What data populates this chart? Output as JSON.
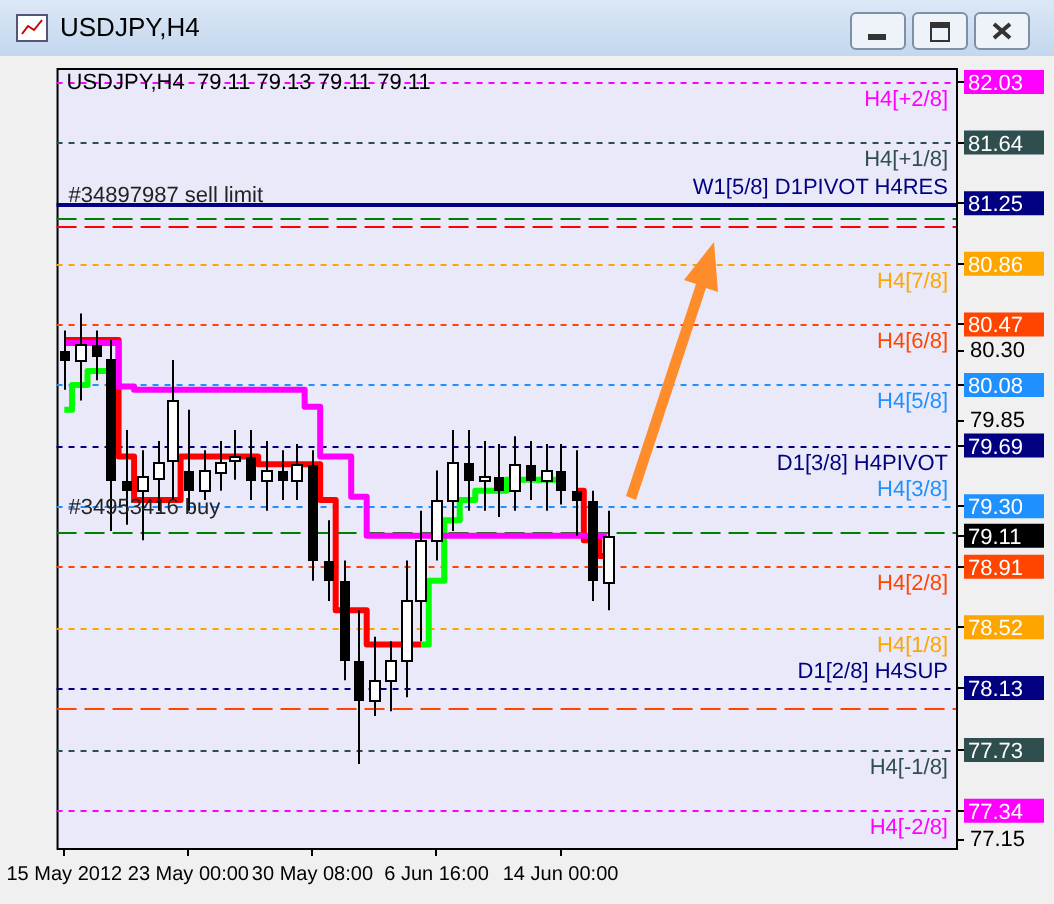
{
  "chart_data": {
    "type": "candlestick",
    "title": "USDJPY,H4",
    "subtitle": "79.11 79.13 79.11 79.11",
    "categories": [
      "15 May 2012",
      null,
      null,
      null,
      null,
      null,
      null,
      null,
      "23 May 00:00",
      null,
      null,
      null,
      null,
      null,
      null,
      null,
      "30 May 08:00",
      null,
      null,
      null,
      null,
      null,
      null,
      null,
      "6 Jun 16:00",
      null,
      null,
      null,
      null,
      null,
      null,
      null,
      "14 Jun 00:00",
      null,
      null,
      null,
      null,
      null,
      null,
      null,
      null,
      null,
      null,
      null,
      null,
      null,
      null,
      null,
      null,
      null,
      null,
      null,
      null,
      null,
      null,
      null,
      null,
      null
    ],
    "ohlc": [
      [
        80.3,
        80.43,
        80.05,
        80.24
      ],
      [
        80.24,
        80.54,
        79.98,
        80.34
      ],
      [
        80.34,
        80.43,
        80.11,
        80.26
      ],
      [
        80.26,
        80.37,
        79.14,
        79.47
      ],
      [
        79.47,
        79.79,
        79.18,
        79.4
      ],
      [
        79.4,
        79.66,
        79.08,
        79.49
      ],
      [
        79.49,
        79.72,
        79.27,
        79.59
      ],
      [
        79.59,
        80.24,
        79.34,
        79.98
      ],
      [
        79.53,
        79.92,
        79.27,
        79.4
      ],
      [
        79.4,
        79.66,
        79.34,
        79.53
      ],
      [
        79.53,
        79.72,
        79.4,
        79.59
      ],
      [
        79.59,
        79.79,
        79.47,
        79.62
      ],
      [
        79.62,
        79.79,
        79.34,
        79.47
      ],
      [
        79.47,
        79.72,
        79.27,
        79.53
      ],
      [
        79.53,
        79.66,
        79.34,
        79.47
      ],
      [
        79.47,
        79.7,
        79.34,
        79.57
      ],
      [
        79.57,
        79.66,
        78.82,
        78.95
      ],
      [
        78.95,
        79.21,
        78.69,
        78.82
      ],
      [
        78.82,
        78.95,
        78.18,
        78.31
      ],
      [
        78.31,
        78.63,
        77.64,
        78.05
      ],
      [
        78.05,
        78.46,
        77.95,
        78.18
      ],
      [
        78.18,
        78.43,
        77.98,
        78.31
      ],
      [
        78.31,
        78.95,
        78.07,
        78.69
      ],
      [
        78.69,
        79.27,
        78.43,
        79.08
      ],
      [
        79.08,
        79.53,
        78.95,
        79.34
      ],
      [
        79.34,
        79.79,
        79.14,
        79.59
      ],
      [
        79.59,
        79.79,
        79.27,
        79.47
      ],
      [
        79.47,
        79.72,
        79.27,
        79.49
      ],
      [
        79.49,
        79.7,
        79.23,
        79.4
      ],
      [
        79.4,
        79.75,
        79.27,
        79.57
      ],
      [
        79.57,
        79.72,
        79.34,
        79.47
      ],
      [
        79.47,
        79.7,
        79.27,
        79.53
      ],
      [
        79.53,
        79.7,
        79.31,
        79.4
      ],
      [
        79.4,
        79.66,
        79.11,
        79.34
      ],
      [
        79.34,
        79.4,
        78.69,
        78.82
      ],
      [
        78.82,
        79.27,
        78.63,
        79.11
      ],
      null,
      null,
      null,
      null,
      null,
      null,
      null,
      null,
      null,
      null,
      null,
      null,
      null,
      null,
      null,
      null,
      null,
      null,
      null,
      null,
      null,
      null
    ],
    "series": [
      {
        "type": "step",
        "color": "#ff00ff",
        "values": [
          80.35,
          80.35,
          80.35,
          80.35,
          80.07,
          80.05,
          80.05,
          80.05,
          80.05,
          80.05,
          80.05,
          80.05,
          80.05,
          80.05,
          80.05,
          80.05,
          79.94,
          79.62,
          79.62,
          79.36,
          79.11,
          79.11,
          79.11,
          79.11,
          79.11,
          79.11,
          79.11,
          79.11,
          79.11,
          79.11,
          79.11,
          79.11,
          79.11,
          79.11,
          79.11,
          79.11,
          null,
          null,
          null,
          null,
          null,
          null,
          null,
          null,
          null,
          null,
          null,
          null,
          null,
          null,
          null,
          null,
          null,
          null,
          null,
          null,
          null,
          null
        ]
      },
      {
        "type": "step",
        "color": "#ff0000",
        "values": [
          80.37,
          80.37,
          80.37,
          80.37,
          79.62,
          79.34,
          79.34,
          79.34,
          79.62,
          79.62,
          79.62,
          79.62,
          79.62,
          79.57,
          79.57,
          79.57,
          79.57,
          79.34,
          78.63,
          78.63,
          78.41,
          78.41,
          78.41,
          78.41,
          null,
          null,
          null,
          null,
          null,
          null,
          null,
          null,
          null,
          79.4,
          79.08,
          78.98,
          null,
          null,
          null,
          null,
          null,
          null,
          null,
          null,
          null,
          null,
          null,
          null,
          null,
          null,
          null,
          null,
          null,
          null,
          null,
          null,
          null,
          null
        ]
      },
      {
        "type": "step",
        "color": "#00ff00",
        "values": [
          79.92,
          80.08,
          80.17,
          80.17,
          null,
          null,
          null,
          null,
          null,
          null,
          null,
          null,
          null,
          null,
          null,
          null,
          null,
          null,
          null,
          null,
          null,
          null,
          null,
          78.41,
          78.82,
          79.21,
          79.34,
          79.4,
          79.4,
          79.47,
          79.47,
          79.47,
          79.47,
          null,
          null,
          null,
          null,
          null,
          null,
          null,
          null,
          null,
          null,
          null,
          null,
          null,
          null,
          null,
          null,
          null,
          null,
          null,
          null,
          null,
          null,
          null,
          null,
          null
        ]
      }
    ],
    "ylim": [
      77.1,
      82.12
    ],
    "yticks": [
      {
        "value": 82.03,
        "label": "82.03"
      },
      {
        "value": 81.64,
        "label": "81.64"
      },
      {
        "value": 81.25,
        "label": "81.25"
      },
      {
        "value": 80.86,
        "label": "80.86"
      },
      {
        "value": 80.47,
        "label": "80.47"
      },
      {
        "value": 80.3,
        "label": "80.30"
      },
      {
        "value": 80.08,
        "label": "80.08"
      },
      {
        "value": 79.85,
        "label": "79.85"
      },
      {
        "value": 79.69,
        "label": "79.69"
      },
      {
        "value": 79.3,
        "label": "79.30"
      },
      {
        "value": 79.11,
        "label": "79.11"
      },
      {
        "value": 78.91,
        "label": "78.91"
      },
      {
        "value": 78.52,
        "label": "78.52"
      },
      {
        "value": 78.13,
        "label": "78.13"
      },
      {
        "value": 77.73,
        "label": "77.73"
      },
      {
        "value": 77.34,
        "label": "77.34"
      },
      {
        "value": 77.15,
        "label": "77.15"
      }
    ],
    "ref_lines": [
      {
        "axis": "y",
        "value": 82.03,
        "label": "H4[+2/8]",
        "color": "#ff00ff",
        "line_style": "dotted"
      },
      {
        "axis": "y",
        "value": 81.64,
        "label": "H4[+1/8]",
        "color": "#2f4f4f",
        "line_style": "dotted"
      },
      {
        "axis": "y",
        "value": 81.25,
        "label": "W1[5/8] D1PIVOT H4RES",
        "color": "#000080",
        "line_style": "solid"
      },
      {
        "axis": "y",
        "value": 81.15,
        "color": "#008000",
        "line_style": "dashed"
      },
      {
        "axis": "y",
        "value": 81.1,
        "color": "#ff0000",
        "line_style": "dashed"
      },
      {
        "axis": "y",
        "value": 80.86,
        "label": "H4[7/8]",
        "color": "#ffa500",
        "line_style": "dotted"
      },
      {
        "axis": "y",
        "value": 80.47,
        "label": "H4[6/8]",
        "color": "#ff4500",
        "line_style": "dotted"
      },
      {
        "axis": "y",
        "value": 80.08,
        "label": "H4[5/8]",
        "color": "#1e90ff",
        "line_style": "dotted"
      },
      {
        "axis": "y",
        "value": 79.69,
        "label": "D1[3/8] H4PIVOT",
        "color": "#000080",
        "line_style": "dotted"
      },
      {
        "axis": "y",
        "value": 79.3,
        "label": "H4[3/8]",
        "color": "#1e90ff",
        "line_style": "dotted"
      },
      {
        "axis": "y",
        "value": 79.14,
        "color": "#008000",
        "line_style": "dashed"
      },
      {
        "axis": "y",
        "value": 78.91,
        "label": "H4[2/8]",
        "color": "#ff4500",
        "line_style": "dotted"
      },
      {
        "axis": "y",
        "value": 78.52,
        "label": "H4[1/8]",
        "color": "#ffa500",
        "line_style": "dotted"
      },
      {
        "axis": "y",
        "value": 78.13,
        "label": "D1[2/8] H4SUP",
        "color": "#000080",
        "line_style": "dotted"
      },
      {
        "axis": "y",
        "value": 78.0,
        "color": "#ff4500",
        "line_style": "dashed"
      },
      {
        "axis": "y",
        "value": 77.73,
        "label": "H4[-1/8]",
        "color": "#2f4f4f",
        "line_style": "dotted"
      },
      {
        "axis": "y",
        "value": 77.34,
        "label": "H4[-2/8]",
        "color": "#ff00ff",
        "line_style": "dotted"
      }
    ],
    "annotations": [
      {
        "text": "#34897987 sell limit",
        "y": 81.15
      },
      {
        "text": "#34953416 buy",
        "y": 79.14
      }
    ]
  }
}
